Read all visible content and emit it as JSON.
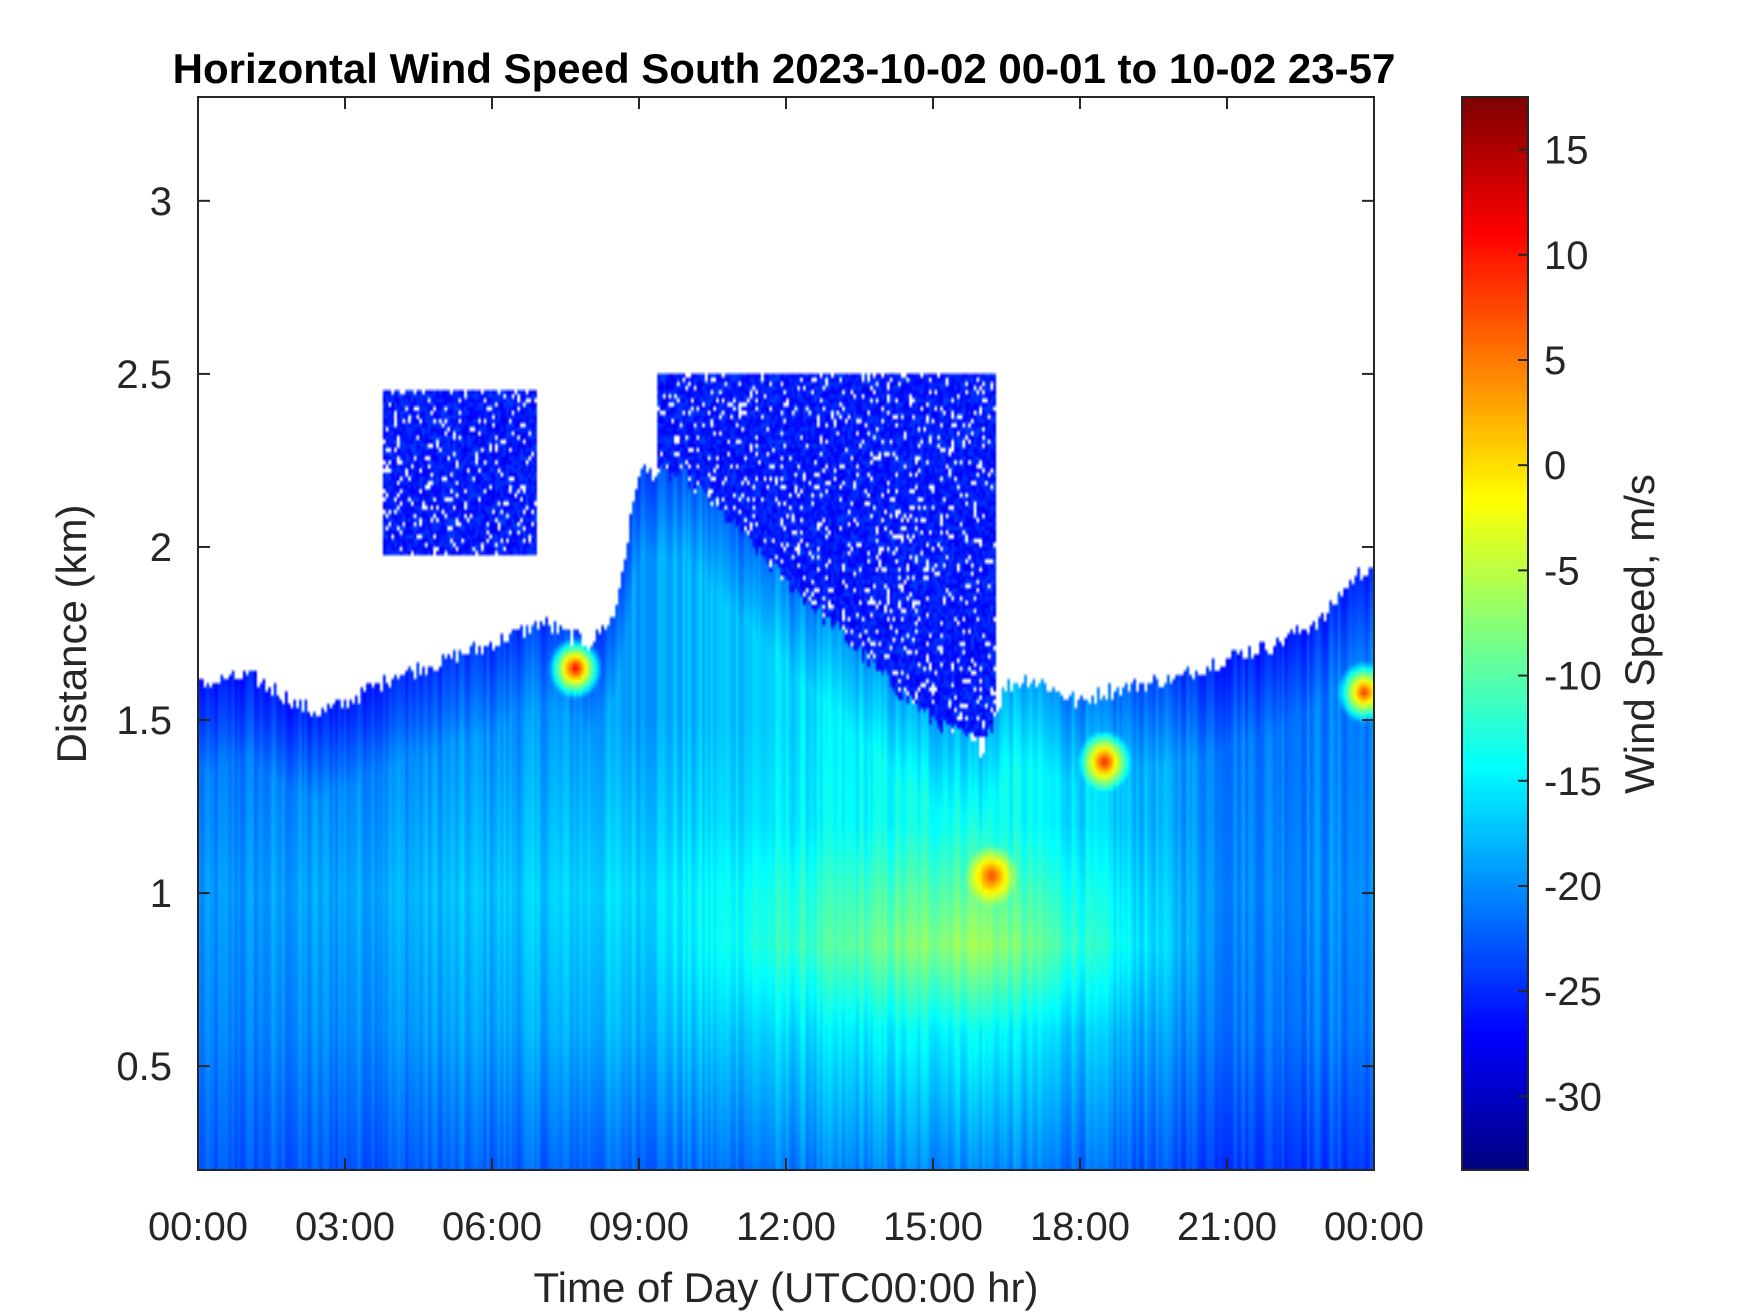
{
  "chart_data": {
    "type": "heatmap",
    "title": "Horizontal Wind Speed South 2023-10-02 00-01 to 10-02 23-57",
    "xlabel": "Time of Day (UTC00:00 hr)",
    "ylabel": "Distance (km)",
    "colorbar_label": "Wind Speed, m/s",
    "colormap": "jet",
    "grid": false,
    "x_tick_hours": [
      0,
      3,
      6,
      9,
      12,
      15,
      18,
      21,
      24
    ],
    "x_tick_labels": [
      "00:00",
      "03:00",
      "06:00",
      "09:00",
      "12:00",
      "15:00",
      "18:00",
      "21:00",
      "00:00"
    ],
    "xlim_hours": [
      0,
      24
    ],
    "y_ticks": [
      0.5,
      1,
      1.5,
      2,
      2.5,
      3
    ],
    "y_tick_labels": [
      "0.5",
      "1",
      "1.5",
      "2",
      "2.5",
      "3"
    ],
    "ylim_km": [
      0.2,
      3.3
    ],
    "colorbar_ticks": [
      15,
      10,
      5,
      0,
      -5,
      -10,
      -15,
      -20,
      -25,
      -30
    ],
    "colorbar_tick_labels": [
      "15",
      "10",
      "5",
      "0",
      "-5",
      "-10",
      "-15",
      "-20",
      "-25",
      "-30"
    ],
    "clim": [
      -33.5,
      17.5
    ],
    "top_of_data_km": {
      "hours": [
        0,
        1,
        2,
        2.5,
        3,
        4,
        5,
        6,
        7,
        8,
        8.5,
        9,
        10,
        11,
        12,
        13,
        14,
        15,
        16,
        16.5,
        17,
        18,
        18.5,
        19,
        20,
        21,
        22,
        23,
        23.5,
        24
      ],
      "top_km": [
        1.6,
        1.63,
        1.55,
        1.52,
        1.55,
        1.63,
        1.67,
        1.72,
        1.78,
        1.72,
        1.8,
        2.22,
        2.2,
        2.05,
        1.9,
        1.77,
        1.62,
        1.5,
        1.42,
        1.6,
        1.62,
        1.55,
        1.58,
        1.6,
        1.62,
        1.68,
        1.72,
        1.8,
        1.9,
        1.95
      ]
    },
    "upper_layer_patches": [
      {
        "hours": [
          3.8,
          6.9
        ],
        "km": [
          1.98,
          2.45
        ],
        "value_ms": -26
      },
      {
        "hours": [
          9.4,
          16.3
        ],
        "km": [
          1.45,
          2.5
        ],
        "value_ms": -26
      }
    ],
    "wind_speed_profile_samples": [
      {
        "hours": 0,
        "km": [
          0.2,
          0.6,
          1.0,
          1.5
        ],
        "ms": [
          -23,
          -21,
          -20,
          -22
        ]
      },
      {
        "hours": 9,
        "km": [
          0.2,
          0.6,
          1.0,
          1.5
        ],
        "ms": [
          -22,
          -18,
          -16,
          -19
        ]
      },
      {
        "hours": 15.9,
        "km": [
          0.2,
          0.6,
          0.85,
          1.2
        ],
        "ms": [
          -20,
          -14,
          -6,
          -13
        ]
      },
      {
        "hours": 21,
        "km": [
          0.2,
          0.6,
          1.0,
          1.5
        ],
        "ms": [
          -24,
          -21,
          -20,
          -21
        ]
      }
    ],
    "positive_hotspots": [
      {
        "hours": 7.7,
        "km": 1.65,
        "ms": 12
      },
      {
        "hours": 18.5,
        "km": 1.38,
        "ms": 10
      },
      {
        "hours": 23.8,
        "km": 1.58,
        "ms": 9
      },
      {
        "hours": 16.2,
        "km": 1.05,
        "ms": 8
      }
    ]
  }
}
